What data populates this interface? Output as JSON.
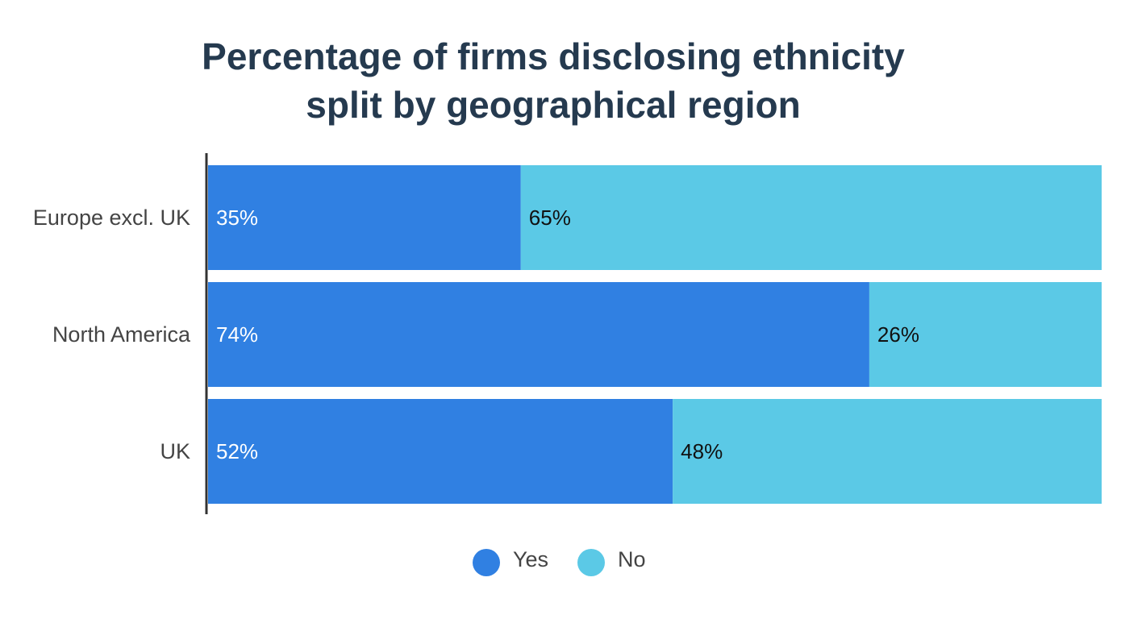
{
  "chart_data": {
    "type": "bar",
    "orientation": "horizontal",
    "stacked": true,
    "title_lines": [
      "Percentage of firms disclosing ethnicity",
      "split by geographical region"
    ],
    "categories": [
      "Europe excl. UK",
      "North America",
      "UK"
    ],
    "series": [
      {
        "name": "Yes",
        "values": [
          35,
          74,
          52
        ],
        "labels": [
          "35%",
          "74%",
          "52%"
        ],
        "color": "#3080e2",
        "label_color": "#ffffff"
      },
      {
        "name": "No",
        "values": [
          65,
          26,
          48
        ],
        "labels": [
          "65%",
          "26%",
          "48%"
        ],
        "color": "#5bc9e6",
        "label_color": "#111111"
      }
    ],
    "xlim": [
      0,
      100
    ],
    "grid": false,
    "legend_position": "bottom-center"
  }
}
